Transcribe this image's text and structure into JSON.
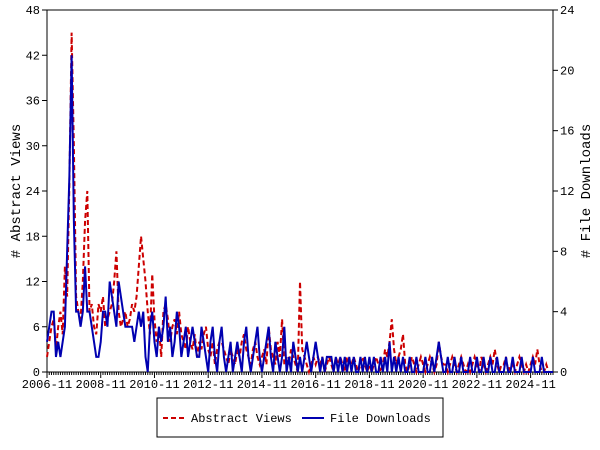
{
  "chart_data": {
    "type": "line",
    "y_label": "# Abstract Views",
    "y2_label": "# File Downloads",
    "ylim": [
      0,
      48
    ],
    "yticks": [
      0,
      6,
      12,
      18,
      24,
      30,
      36,
      42,
      48
    ],
    "y2lim": [
      0,
      24
    ],
    "y2ticks": [
      0,
      4,
      8,
      12,
      16,
      20,
      24
    ],
    "legend": "bottom",
    "categories": [
      "2006-11",
      null,
      null,
      null,
      null,
      null,
      null,
      null,
      null,
      null,
      null,
      null,
      null,
      null,
      null,
      null,
      null,
      null,
      null,
      null,
      null,
      null,
      null,
      null,
      "2008-11",
      null,
      null,
      null,
      null,
      null,
      null,
      null,
      null,
      null,
      null,
      null,
      null,
      null,
      null,
      null,
      null,
      null,
      null,
      null,
      null,
      null,
      null,
      null,
      "2010-11",
      null,
      null,
      null,
      null,
      null,
      null,
      null,
      null,
      null,
      null,
      null,
      null,
      null,
      null,
      null,
      null,
      null,
      null,
      null,
      null,
      null,
      null,
      null,
      "2012-11",
      null,
      null,
      null,
      null,
      null,
      null,
      null,
      null,
      null,
      null,
      null,
      null,
      null,
      null,
      null,
      null,
      null,
      null,
      null,
      null,
      null,
      null,
      null,
      "2014-11",
      null,
      null,
      null,
      null,
      null,
      null,
      null,
      null,
      null,
      null,
      null,
      null,
      null,
      null,
      null,
      null,
      null,
      null,
      null,
      null,
      null,
      null,
      null,
      "2016-11",
      null,
      null,
      null,
      null,
      null,
      null,
      null,
      null,
      null,
      null,
      null,
      null,
      null,
      null,
      null,
      null,
      null,
      null,
      null,
      null,
      null,
      null,
      null,
      "2018-11",
      null,
      null,
      null,
      null,
      null,
      null,
      null,
      null,
      null,
      null,
      null,
      null,
      null,
      null,
      null,
      null,
      null,
      null,
      null,
      null,
      null,
      null,
      null,
      "2020-11",
      null,
      null,
      null,
      null,
      null,
      null,
      null,
      null,
      null,
      null,
      null,
      null,
      null,
      null,
      null,
      null,
      null,
      null,
      null,
      null,
      null,
      null,
      null,
      "2022-11",
      null,
      null,
      null,
      null,
      null,
      null,
      null,
      null,
      null,
      null,
      null,
      null,
      null,
      null,
      null,
      null,
      null,
      null,
      null,
      null,
      null,
      null,
      null,
      "2024-11",
      null,
      null,
      null,
      null,
      null,
      null,
      null,
      null,
      null,
      null
    ],
    "series": [
      {
        "name": "Abstract Views",
        "color": "#cc0000",
        "dashed": true,
        "axis": "y",
        "values": [
          2,
          4,
          6,
          7,
          3,
          6,
          8,
          5,
          14,
          10,
          25,
          45,
          30,
          10,
          8,
          7,
          12,
          20,
          24,
          8,
          9,
          6,
          5,
          9,
          8,
          10,
          6,
          7,
          8,
          9,
          12,
          16,
          8,
          6,
          7,
          8,
          6,
          7,
          9,
          8,
          10,
          14,
          18,
          15,
          12,
          8,
          5,
          13,
          7,
          4,
          6,
          2,
          8,
          9,
          7,
          4,
          6,
          7,
          5,
          8,
          5,
          4,
          3,
          6,
          4,
          3,
          5,
          2,
          4,
          3,
          5,
          6,
          3,
          2,
          4,
          1,
          3,
          4,
          4,
          3,
          2,
          1,
          3,
          2,
          1,
          3,
          2,
          4,
          5,
          3,
          2,
          1,
          3,
          4,
          2,
          1,
          2,
          3,
          1,
          6,
          3,
          2,
          1,
          4,
          2,
          7,
          1,
          2,
          1,
          3,
          2,
          1,
          0,
          12,
          3,
          2,
          1,
          0,
          1,
          2,
          1,
          2,
          1,
          2,
          0,
          1,
          2,
          1,
          0,
          2,
          1,
          2,
          1,
          0,
          2,
          1,
          1,
          2,
          1,
          0,
          1,
          2,
          1,
          0,
          1,
          0,
          1,
          2,
          1,
          0,
          1,
          3,
          2,
          4,
          7,
          3,
          1,
          2,
          3,
          5,
          1,
          0,
          1,
          2,
          1,
          0,
          1,
          2,
          1,
          0,
          1,
          2,
          1,
          0,
          1,
          4,
          2,
          1,
          1,
          0,
          1,
          2,
          1,
          0,
          1,
          2,
          1,
          0,
          1,
          0,
          1,
          2,
          1,
          0,
          2,
          1,
          0,
          1,
          2,
          1,
          3,
          1,
          0,
          1,
          1,
          2,
          0,
          1,
          1,
          0,
          1,
          2,
          1,
          0,
          1,
          0,
          1,
          2,
          1,
          3,
          1,
          0,
          0,
          1,
          0,
          0,
          0
        ]
      },
      {
        "name": "File Downloads",
        "color": "#0000b0",
        "dashed": false,
        "axis": "y2",
        "values": [
          2,
          3,
          4,
          4,
          1,
          2,
          1,
          2,
          3,
          8,
          13,
          21,
          10,
          4,
          4,
          3,
          4,
          7,
          4,
          4,
          3,
          2,
          1,
          1,
          2,
          4,
          4,
          3,
          6,
          5,
          4,
          3,
          6,
          5,
          4,
          3,
          3,
          3,
          3,
          2,
          3,
          4,
          3,
          4,
          1,
          0,
          3,
          4,
          2,
          1,
          3,
          2,
          3,
          5,
          2,
          3,
          1,
          2,
          4,
          3,
          1,
          2,
          3,
          1,
          2,
          3,
          2,
          1,
          1,
          3,
          2,
          1,
          0,
          2,
          3,
          1,
          0,
          2,
          3,
          1,
          0,
          1,
          2,
          0,
          1,
          2,
          1,
          0,
          2,
          3,
          1,
          0,
          1,
          2,
          3,
          1,
          0,
          1,
          2,
          3,
          1,
          0,
          2,
          1,
          0,
          1,
          3,
          0,
          1,
          0,
          2,
          1,
          0,
          1,
          0,
          1,
          2,
          1,
          0,
          1,
          2,
          1,
          0,
          1,
          0,
          1,
          1,
          1,
          0,
          1,
          0,
          1,
          0,
          1,
          0,
          1,
          0,
          1,
          0,
          0,
          1,
          0,
          1,
          0,
          1,
          0,
          1,
          0,
          0,
          1,
          0,
          1,
          0,
          2,
          0,
          1,
          0,
          1,
          0,
          1,
          0,
          0,
          1,
          0,
          0,
          1,
          0,
          0,
          0,
          1,
          0,
          0,
          1,
          0,
          1,
          2,
          1,
          0,
          0,
          1,
          0,
          0,
          1,
          0,
          0,
          1,
          0,
          0,
          0,
          1,
          0,
          0,
          1,
          0,
          0,
          1,
          0,
          0,
          1,
          0,
          0,
          1,
          0,
          0,
          0,
          1,
          0,
          0,
          1,
          0,
          0,
          0,
          1,
          0,
          0,
          0,
          0,
          1,
          0,
          0,
          0,
          1,
          0,
          0,
          0,
          0,
          0
        ]
      }
    ]
  }
}
